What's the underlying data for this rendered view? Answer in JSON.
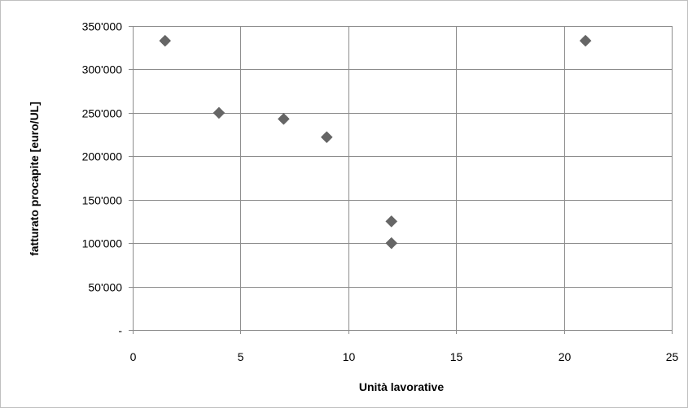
{
  "chart_data": {
    "type": "scatter",
    "title": "",
    "xlabel": "Unità lavorative",
    "ylabel": "fatturato procapite [euro/UL]",
    "xlim": [
      0,
      25
    ],
    "ylim": [
      0,
      350000
    ],
    "xticks": [
      0,
      5,
      10,
      15,
      20,
      25
    ],
    "xtick_labels": [
      "0",
      "5",
      "10",
      "15",
      "20",
      "25"
    ],
    "yticks": [
      0,
      50000,
      100000,
      150000,
      200000,
      250000,
      300000,
      350000
    ],
    "ytick_labels": [
      "-",
      "50'000",
      "100'000",
      "150'000",
      "200'000",
      "250'000",
      "300'000",
      "350'000"
    ],
    "grid": true,
    "legend": "none",
    "marker": "diamond",
    "marker_color": "#666666",
    "series": [
      {
        "points": [
          {
            "x": 1.5,
            "y": 333000
          },
          {
            "x": 4,
            "y": 250000
          },
          {
            "x": 7,
            "y": 243000
          },
          {
            "x": 9,
            "y": 222000
          },
          {
            "x": 12,
            "y": 125000
          },
          {
            "x": 12,
            "y": 100000
          },
          {
            "x": 21,
            "y": 333000
          }
        ]
      }
    ]
  }
}
